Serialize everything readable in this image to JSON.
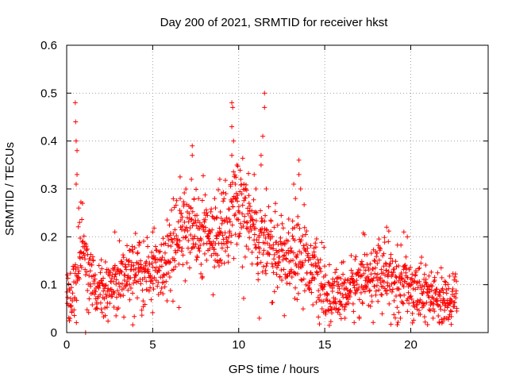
{
  "chart_data": {
    "type": "scatter",
    "title": "Day 200 of 2021, SRMTID for receiver hkst",
    "xlabel": "GPS time / hours",
    "ylabel": "SRMTID / TECUs",
    "xlim": [
      0,
      24.5
    ],
    "ylim": [
      0,
      0.6
    ],
    "xticks": [
      0,
      5,
      10,
      15,
      20
    ],
    "yticks": [
      0,
      0.1,
      0.2,
      0.3,
      0.4,
      0.5,
      0.6
    ],
    "xtick_labels": [
      "0",
      "5",
      "10",
      "15",
      "20"
    ],
    "ytick_labels": [
      "0",
      "0.1",
      "0.2",
      "0.3",
      "0.4",
      "0.5",
      "0.6"
    ],
    "grid": true,
    "marker": "+",
    "series": [
      {
        "name": "SRMTID",
        "color": "#ff0000",
        "trend": {
          "x": [
            0,
            0.3,
            0.6,
            0.9,
            1.2,
            1.5,
            2,
            2.5,
            3,
            3.5,
            4,
            4.5,
            5,
            5.5,
            6,
            6.5,
            7,
            7.5,
            8,
            8.5,
            9,
            9.5,
            10,
            10.5,
            11,
            11.5,
            12,
            12.5,
            13,
            13.5,
            14,
            14.5,
            15,
            15.5,
            16,
            16.5,
            17,
            17.5,
            18,
            18.5,
            19,
            19.5,
            20,
            20.5,
            21,
            21.5,
            22,
            22.5,
            22.7
          ],
          "y": [
            0.08,
            0.08,
            0.12,
            0.2,
            0.12,
            0.1,
            0.1,
            0.1,
            0.11,
            0.12,
            0.12,
            0.12,
            0.13,
            0.14,
            0.16,
            0.2,
            0.22,
            0.21,
            0.2,
            0.19,
            0.2,
            0.22,
            0.25,
            0.24,
            0.2,
            0.18,
            0.17,
            0.16,
            0.16,
            0.17,
            0.15,
            0.12,
            0.08,
            0.07,
            0.08,
            0.09,
            0.11,
            0.12,
            0.12,
            0.12,
            0.11,
            0.1,
            0.1,
            0.09,
            0.08,
            0.07,
            0.06,
            0.07,
            0.07
          ]
        },
        "spikes": [
          {
            "x": 0.5,
            "y": 0.48
          },
          {
            "x": 0.52,
            "y": 0.44
          },
          {
            "x": 0.55,
            "y": 0.4
          },
          {
            "x": 0.6,
            "y": 0.38
          },
          {
            "x": 0.6,
            "y": 0.33
          },
          {
            "x": 0.55,
            "y": 0.31
          },
          {
            "x": 0.7,
            "y": 0.26
          },
          {
            "x": 0.75,
            "y": 0.23
          },
          {
            "x": 1.1,
            "y": 0.0
          },
          {
            "x": 2.8,
            "y": 0.21
          },
          {
            "x": 5.0,
            "y": 0.21
          },
          {
            "x": 6.6,
            "y": 0.28
          },
          {
            "x": 7.3,
            "y": 0.39
          },
          {
            "x": 7.3,
            "y": 0.37
          },
          {
            "x": 7.25,
            "y": 0.32
          },
          {
            "x": 8.0,
            "y": 0.25
          },
          {
            "x": 8.6,
            "y": 0.28
          },
          {
            "x": 8.9,
            "y": 0.32
          },
          {
            "x": 9.0,
            "y": 0.29
          },
          {
            "x": 9.6,
            "y": 0.48
          },
          {
            "x": 9.65,
            "y": 0.47
          },
          {
            "x": 9.6,
            "y": 0.43
          },
          {
            "x": 9.7,
            "y": 0.4
          },
          {
            "x": 9.6,
            "y": 0.37
          },
          {
            "x": 9.8,
            "y": 0.31
          },
          {
            "x": 9.9,
            "y": 0.35
          },
          {
            "x": 10.3,
            "y": 0.31
          },
          {
            "x": 10.6,
            "y": 0.27
          },
          {
            "x": 10.9,
            "y": 0.33
          },
          {
            "x": 11.0,
            "y": 0.3
          },
          {
            "x": 11.3,
            "y": 0.37
          },
          {
            "x": 11.5,
            "y": 0.5
          },
          {
            "x": 11.5,
            "y": 0.47
          },
          {
            "x": 11.4,
            "y": 0.41
          },
          {
            "x": 11.3,
            "y": 0.35
          },
          {
            "x": 11.6,
            "y": 0.3
          },
          {
            "x": 11.2,
            "y": 0.03
          },
          {
            "x": 13.2,
            "y": 0.31
          },
          {
            "x": 13.3,
            "y": 0.28
          },
          {
            "x": 13.5,
            "y": 0.36
          },
          {
            "x": 13.5,
            "y": 0.33
          },
          {
            "x": 13.6,
            "y": 0.3
          },
          {
            "x": 18.6,
            "y": 0.22
          },
          {
            "x": 18.7,
            "y": 0.19
          },
          {
            "x": 19.6,
            "y": 0.21
          },
          {
            "x": 19.8,
            "y": 0.2
          },
          {
            "x": 20.1,
            "y": 0.02
          },
          {
            "x": 19.4,
            "y": 0.03
          },
          {
            "x": 22.0,
            "y": 0.03
          }
        ]
      }
    ]
  }
}
